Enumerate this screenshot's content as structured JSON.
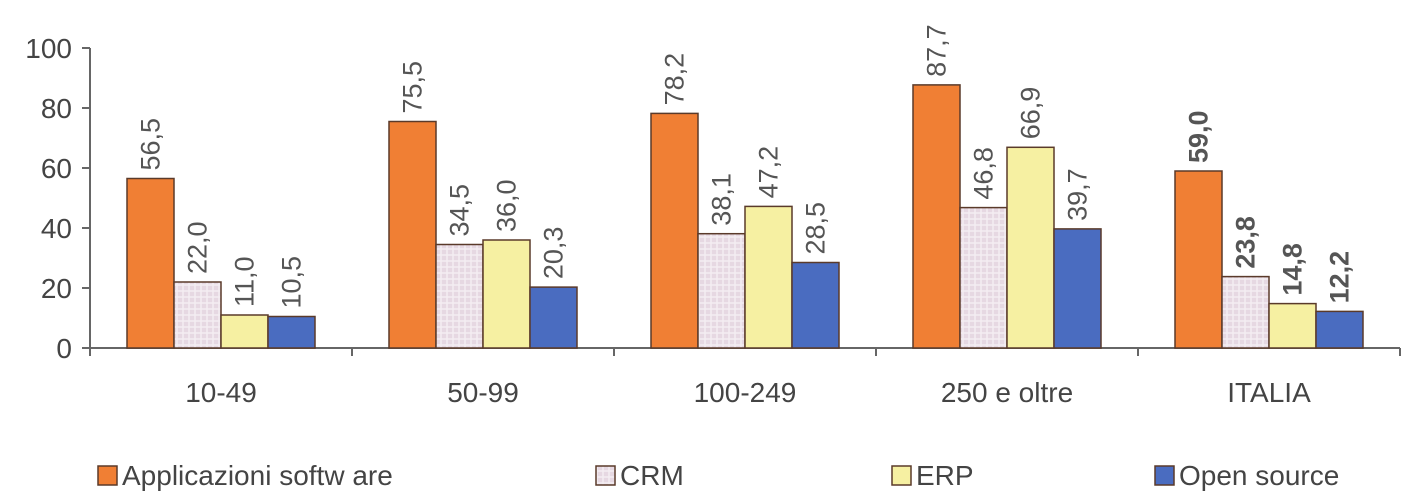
{
  "chart_data": {
    "type": "bar",
    "categories": [
      "10-49",
      "50-99",
      "100-249",
      "250 e oltre",
      "ITALIA"
    ],
    "series": [
      {
        "name": "Applicazioni softw are",
        "values": [
          56.5,
          75.5,
          78.2,
          87.7,
          59.0
        ],
        "labels": [
          "56,5",
          "75,5",
          "78,2",
          "87,7",
          "59,0"
        ],
        "color": "#F07F34"
      },
      {
        "name": "CRM",
        "values": [
          22.0,
          34.5,
          38.1,
          46.8,
          23.8
        ],
        "labels": [
          "22,0",
          "34,5",
          "38,1",
          "46,8",
          "23,8"
        ],
        "color": "#E4D6E0"
      },
      {
        "name": "ERP",
        "values": [
          11.0,
          36.0,
          47.2,
          66.9,
          14.8
        ],
        "labels": [
          "11,0",
          "36,0",
          "47,2",
          "66,9",
          "14,8"
        ],
        "color": "#F6F0A2"
      },
      {
        "name": "Open source",
        "values": [
          10.5,
          20.3,
          28.5,
          39.7,
          12.2
        ],
        "labels": [
          "10,5",
          "20,3",
          "28,5",
          "39,7",
          "12,2"
        ],
        "color": "#4A6CC0"
      }
    ],
    "bold_category": "ITALIA",
    "yticks": [
      "0",
      "20",
      "40",
      "60",
      "80",
      "100"
    ],
    "ylim": [
      0,
      100
    ],
    "grid": false,
    "legend_position": "bottom"
  }
}
